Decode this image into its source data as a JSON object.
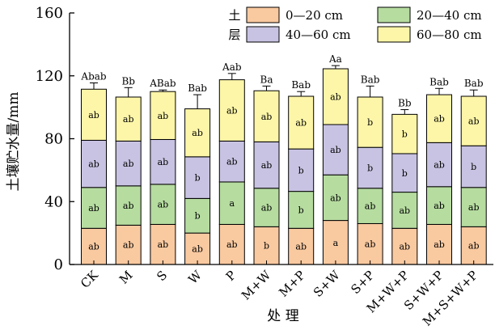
{
  "chart_data": {
    "type": "bar",
    "stacked": true,
    "xlabel": "处 理",
    "ylabel": "土壤贮水量/mm",
    "ylim": [
      0,
      160
    ],
    "yticks": [
      0,
      40,
      80,
      120,
      160
    ],
    "grid": false,
    "legend_title": [
      "土",
      "层"
    ],
    "legend_position": "top-right",
    "categories": [
      "CK",
      "M",
      "S",
      "W",
      "P",
      "M+W",
      "M+P",
      "S+W",
      "S+P",
      "M+W+P",
      "S+W+P",
      "M+S+W+P"
    ],
    "series": [
      {
        "name": "0—20 cm",
        "color": "#f9c9a0",
        "values": [
          23,
          25,
          25.5,
          20,
          25.5,
          24,
          23,
          28,
          26,
          23,
          25.5,
          24
        ],
        "errors": [
          3,
          4,
          3,
          5,
          3,
          3,
          3,
          2,
          5,
          4,
          4,
          3
        ],
        "labels": [
          "ab",
          "ab",
          "ab",
          "ab",
          "ab",
          "b",
          "ab",
          "a",
          "ab",
          "ab",
          "ab",
          "ab"
        ]
      },
      {
        "name": "20—40 cm",
        "color": "#b6dca0",
        "values": [
          26,
          25,
          25.5,
          22,
          27,
          24.5,
          23.5,
          29,
          22.5,
          23,
          24,
          25
        ],
        "errors": [
          4,
          3,
          5,
          2,
          6,
          3,
          3,
          4,
          2,
          3,
          4,
          2
        ],
        "labels": [
          "ab",
          "ab",
          "ab",
          "b",
          "a",
          "ab",
          "b",
          "ab",
          "ab",
          "ab",
          "ab",
          "ab"
        ]
      },
      {
        "name": "40—60 cm",
        "color": "#c8c3e2",
        "values": [
          30,
          28.5,
          28.5,
          26.5,
          26,
          29.5,
          27,
          32,
          26,
          24.5,
          28,
          26.5
        ],
        "errors": [
          6,
          5,
          2,
          5,
          9,
          2,
          5,
          6,
          7,
          5,
          4,
          4
        ],
        "labels": [
          "ab",
          "ab",
          "ab",
          "b",
          "ab",
          "ab",
          "b",
          "ab",
          "b",
          "b",
          "ab",
          "b"
        ]
      },
      {
        "name": "60—80 cm",
        "color": "#fdf6a8",
        "values": [
          32.5,
          28,
          30.5,
          30.5,
          39,
          32.5,
          33.5,
          35.5,
          32,
          25,
          30.5,
          31.5
        ],
        "errors": [
          4,
          6,
          1,
          9,
          4,
          3,
          3,
          2,
          7,
          3,
          4,
          4
        ],
        "labels": [
          "ab",
          "ab",
          "ab",
          "ab",
          "ab",
          "ab",
          "ab",
          "ab",
          "b",
          "b",
          "ab",
          "ab"
        ]
      }
    ],
    "top_labels": [
      "Abab",
      "Bb",
      "ABab",
      "Bab",
      "Aab",
      "Ba",
      "Bab",
      "Aa",
      "Bab",
      "Bb",
      "Bab",
      "Bab"
    ]
  }
}
